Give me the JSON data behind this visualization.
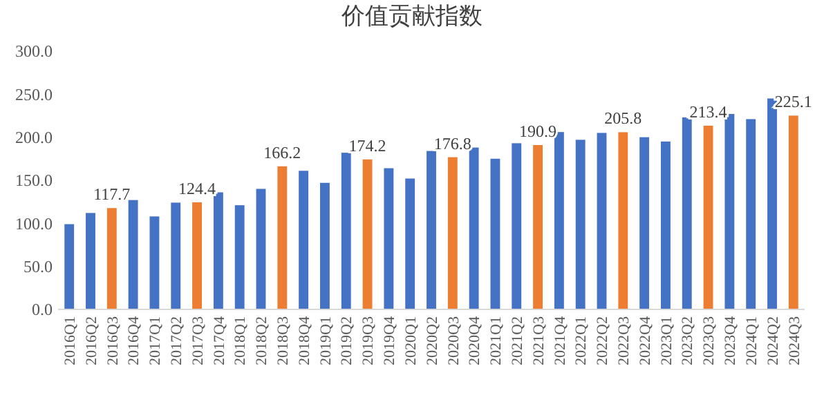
{
  "chart_data": {
    "type": "bar",
    "title": "价值贡献指数",
    "categories": [
      "2016Q1",
      "2016Q2",
      "2016Q3",
      "2016Q4",
      "2017Q1",
      "2017Q2",
      "2017Q3",
      "2017Q4",
      "2018Q1",
      "2018Q2",
      "2018Q3",
      "2018Q4",
      "2019Q1",
      "2019Q2",
      "2019Q3",
      "2019Q4",
      "2020Q1",
      "2020Q2",
      "2020Q3",
      "2020Q4",
      "2021Q1",
      "2021Q2",
      "2021Q3",
      "2021Q4",
      "2022Q1",
      "2022Q2",
      "2022Q3",
      "2022Q4",
      "2023Q1",
      "2023Q2",
      "2023Q3",
      "2023Q4",
      "2024Q1",
      "2024Q2",
      "2024Q3"
    ],
    "values": [
      99,
      112,
      117.7,
      127,
      108,
      124,
      124.4,
      136,
      121,
      140,
      166.2,
      161,
      147,
      182,
      174.2,
      164,
      152,
      184,
      176.8,
      188,
      175,
      193,
      190.9,
      206,
      197,
      205,
      205.8,
      200,
      195,
      223,
      213.4,
      227,
      221,
      245,
      225.1
    ],
    "colors": [
      "#4472c4",
      "#4472c4",
      "#ed7d31",
      "#4472c4",
      "#4472c4",
      "#4472c4",
      "#ed7d31",
      "#4472c4",
      "#4472c4",
      "#4472c4",
      "#ed7d31",
      "#4472c4",
      "#4472c4",
      "#4472c4",
      "#ed7d31",
      "#4472c4",
      "#4472c4",
      "#4472c4",
      "#ed7d31",
      "#4472c4",
      "#4472c4",
      "#4472c4",
      "#ed7d31",
      "#4472c4",
      "#4472c4",
      "#4472c4",
      "#ed7d31",
      "#4472c4",
      "#4472c4",
      "#4472c4",
      "#ed7d31",
      "#4472c4",
      "#4472c4",
      "#4472c4",
      "#ed7d31"
    ],
    "value_labels": [
      null,
      null,
      "117.7",
      null,
      null,
      null,
      "124.4",
      null,
      null,
      null,
      "166.2",
      null,
      null,
      null,
      "174.2",
      null,
      null,
      null,
      "176.8",
      null,
      null,
      null,
      "190.9",
      null,
      null,
      null,
      "205.8",
      null,
      null,
      null,
      "213.4",
      null,
      null,
      null,
      "225.1"
    ],
    "ylim": [
      0,
      300
    ],
    "yticks": [
      {
        "value": 0,
        "label": "0.0"
      },
      {
        "value": 50,
        "label": "50.0"
      },
      {
        "value": 100,
        "label": "100.0"
      },
      {
        "value": 150,
        "label": "150.0"
      },
      {
        "value": 200,
        "label": "200.0"
      },
      {
        "value": 250,
        "label": "250.0"
      },
      {
        "value": 300,
        "label": "300.0"
      }
    ],
    "grid": false
  }
}
